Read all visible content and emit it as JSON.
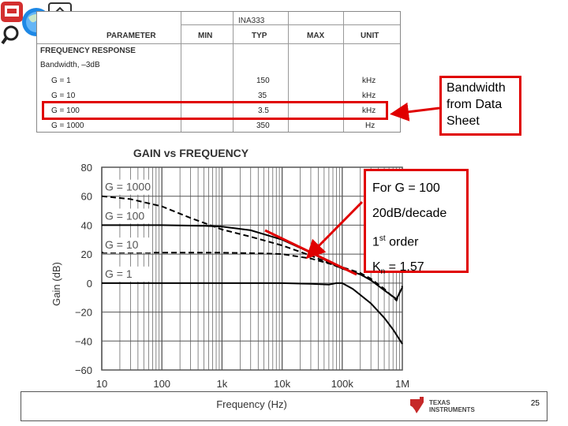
{
  "datasheet": {
    "part": "INA333",
    "headers": {
      "parameter": "PARAMETER",
      "min": "MIN",
      "typ": "TYP",
      "max": "MAX",
      "unit": "UNIT"
    },
    "section": "FREQUENCY RESPONSE",
    "subsection": "Bandwidth, –3dB",
    "rows": [
      {
        "label": "G = 1",
        "typ": "150",
        "unit": "kHz"
      },
      {
        "label": "G = 10",
        "typ": "35",
        "unit": "kHz"
      },
      {
        "label": "G = 100",
        "typ": "3.5",
        "unit": "kHz"
      },
      {
        "label": "G = 1000",
        "typ": "350",
        "unit": "Hz"
      }
    ]
  },
  "callouts": {
    "bandwidth": [
      "Bandwidth",
      "from Data",
      "Sheet"
    ],
    "analysis": {
      "line1": "For G = 100",
      "line2": "20dB/decade",
      "line3_main": "1",
      "line3_sup": "st",
      "line3_rest": " order",
      "line4_main": "K",
      "line4_sub": "n",
      "line4_rest": " = 1.57"
    }
  },
  "footer": {
    "page_number": "25",
    "logo_line1": "TEXAS",
    "logo_line2": "INSTRUMENTS"
  },
  "colors": {
    "highlight": "#e00000",
    "grid": "#555555",
    "curve": "#000000"
  },
  "chart_data": {
    "type": "line",
    "title": "GAIN vs FREQUENCY",
    "xlabel": "Frequency (Hz)",
    "ylabel": "Gain (dB)",
    "xscale": "log",
    "xlim": [
      10,
      1000000
    ],
    "ylim": [
      -60,
      80
    ],
    "x_ticks": [
      "10",
      "100",
      "1k",
      "10k",
      "100k",
      "1M"
    ],
    "y_ticks": [
      "80",
      "60",
      "40",
      "20",
      "0",
      "−20",
      "−40",
      "−60"
    ],
    "grid": true,
    "series": [
      {
        "name": "G = 1000",
        "style": "dashed",
        "points": [
          [
            10,
            60
          ],
          [
            30,
            58
          ],
          [
            100,
            53
          ],
          [
            300,
            45
          ],
          [
            1000,
            37
          ],
          [
            3000,
            32
          ],
          [
            10000,
            26
          ],
          [
            30000,
            19
          ],
          [
            100000,
            10
          ],
          [
            200000,
            6
          ],
          [
            300000,
            2
          ]
        ]
      },
      {
        "name": "G = 100",
        "style": "solid",
        "points": [
          [
            10,
            40
          ],
          [
            100,
            40
          ],
          [
            500,
            39.5
          ],
          [
            1000,
            39
          ],
          [
            3000,
            36.5
          ],
          [
            10000,
            30
          ],
          [
            30000,
            21
          ],
          [
            100000,
            10
          ],
          [
            200000,
            6
          ],
          [
            300000,
            2
          ],
          [
            500000,
            -5
          ],
          [
            800000,
            -11
          ],
          [
            1000000,
            -3
          ]
        ]
      },
      {
        "name": "G = 10",
        "style": "dashed",
        "points": [
          [
            10,
            21
          ],
          [
            100,
            21
          ],
          [
            1000,
            21
          ],
          [
            5000,
            20.5
          ],
          [
            10000,
            20
          ],
          [
            30000,
            17
          ],
          [
            100000,
            11
          ],
          [
            200000,
            7
          ],
          [
            300000,
            3
          ],
          [
            500000,
            -4
          ],
          [
            800000,
            -12
          ],
          [
            1000000,
            -2
          ]
        ]
      },
      {
        "name": "G = 1",
        "style": "solid",
        "points": [
          [
            10,
            0
          ],
          [
            100,
            0
          ],
          [
            1000,
            0
          ],
          [
            10000,
            0
          ],
          [
            30000,
            -0.5
          ],
          [
            60000,
            -1
          ],
          [
            80000,
            0
          ],
          [
            100000,
            0
          ],
          [
            150000,
            -4
          ],
          [
            300000,
            -14
          ],
          [
            500000,
            -24
          ],
          [
            700000,
            -32
          ],
          [
            1000000,
            -42
          ]
        ]
      }
    ]
  }
}
